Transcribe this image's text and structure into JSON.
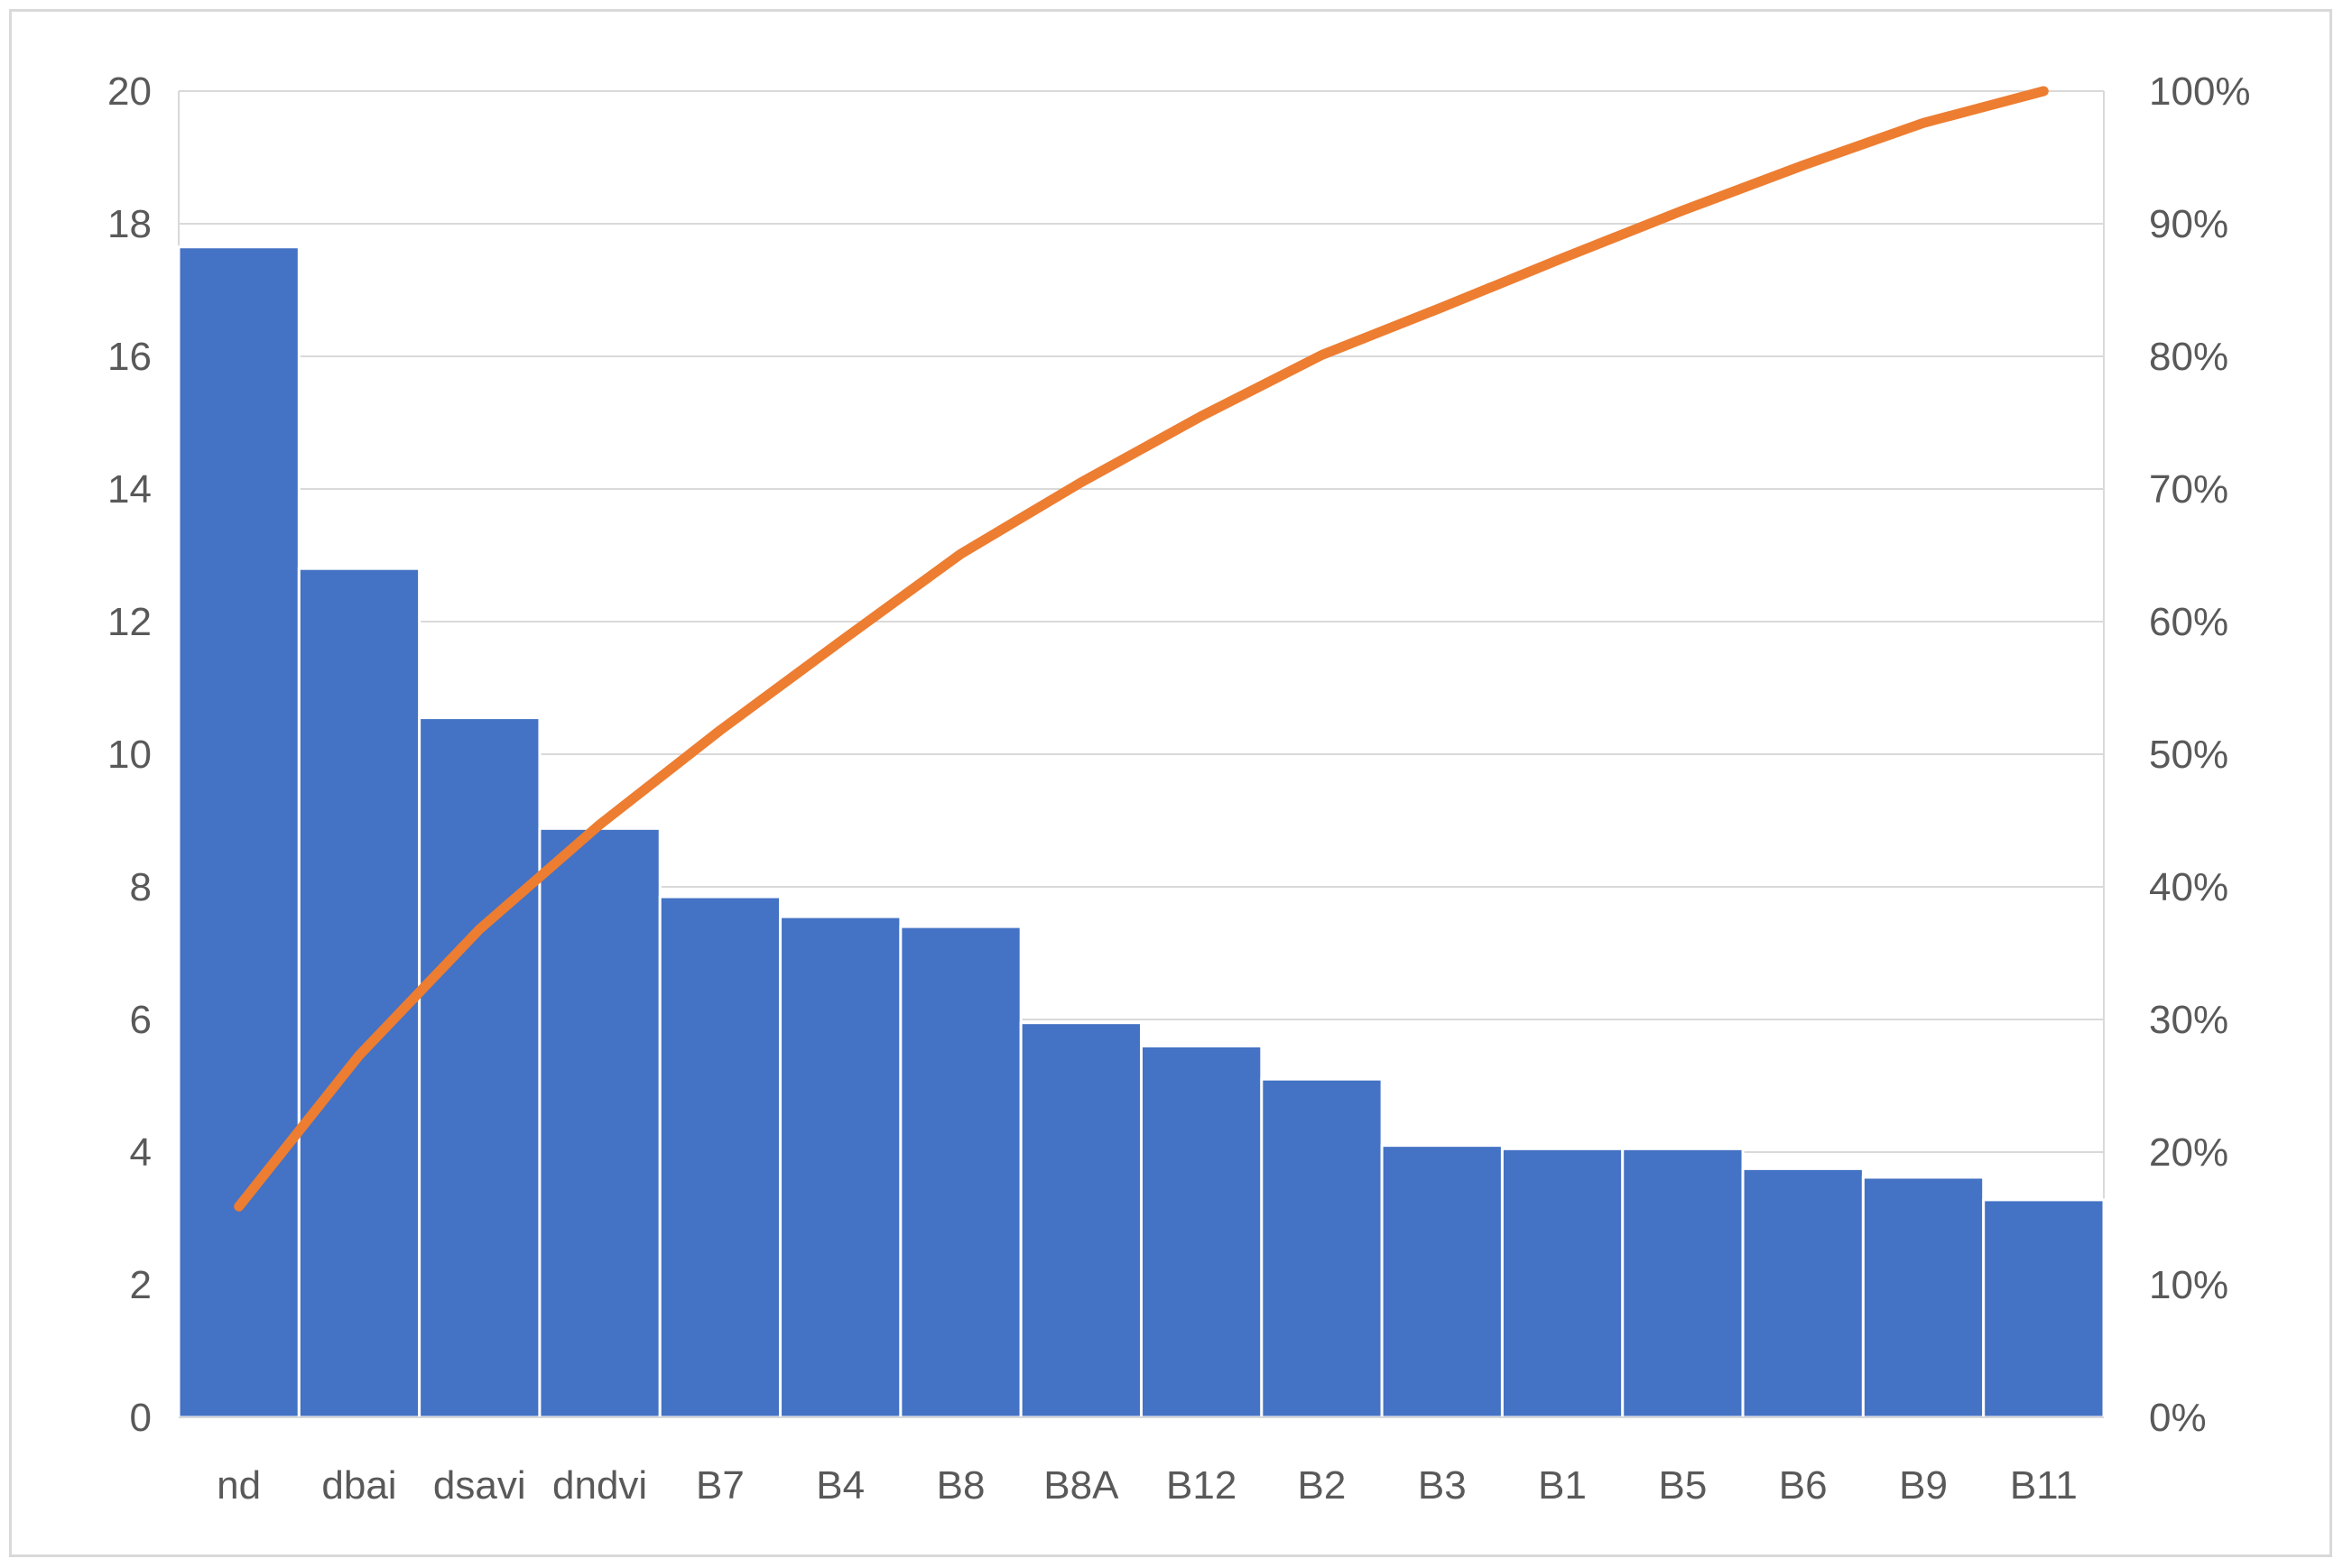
{
  "chart_data": {
    "type": "bar",
    "title": "",
    "xlabel": "",
    "ylabel": "",
    "categories": [
      "nd",
      "dbai",
      "dsavi",
      "dndvi",
      "B7",
      "B4",
      "B8",
      "B8A",
      "B12",
      "B2",
      "B3",
      "B1",
      "B5",
      "B6",
      "B9",
      "B11"
    ],
    "values": [
      17.65,
      12.8,
      10.55,
      8.88,
      7.85,
      7.55,
      7.4,
      5.95,
      5.6,
      5.1,
      4.1,
      4.05,
      4.05,
      3.75,
      3.62,
      3.28
    ],
    "ylim": [
      0,
      20
    ],
    "yticks": [
      "0",
      "2",
      "4",
      "6",
      "8",
      "10",
      "12",
      "14",
      "16",
      "18",
      "20"
    ],
    "cumulative_percent": [
      15.9,
      27.3,
      36.8,
      44.7,
      51.8,
      58.5,
      65.1,
      70.5,
      75.5,
      80.1,
      83.7,
      87.4,
      91.0,
      94.4,
      97.6,
      100.0
    ],
    "y2lim": [
      0,
      100
    ],
    "y2ticks": [
      "0%",
      "10%",
      "20%",
      "30%",
      "40%",
      "50%",
      "60%",
      "70%",
      "80%",
      "90%",
      "100%"
    ],
    "grid": true,
    "bar_color": "#4472C4",
    "line_color": "#ED7D31",
    "grid_color": "#D9D9D9"
  }
}
